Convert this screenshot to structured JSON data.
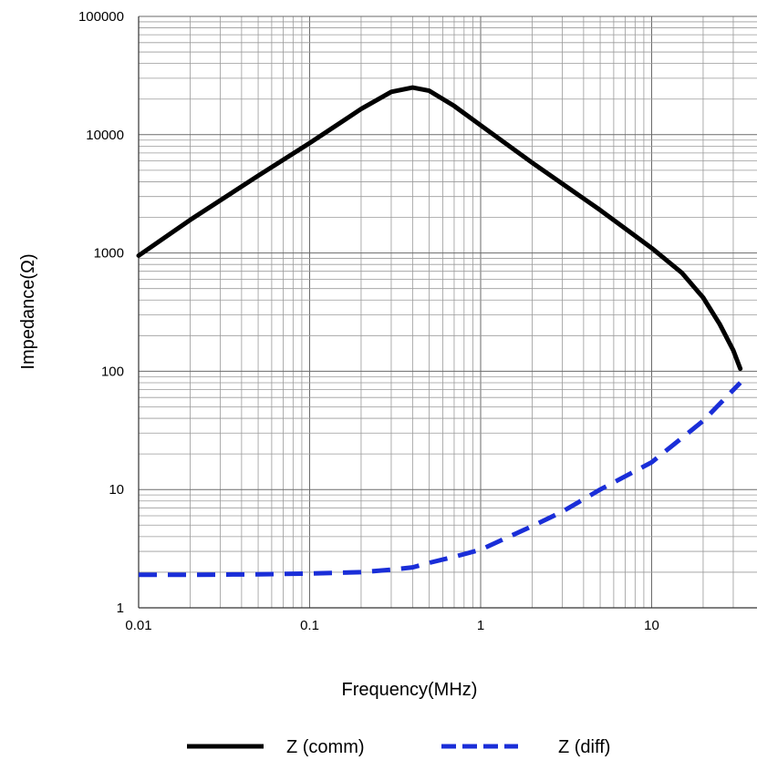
{
  "chart_data": {
    "type": "line",
    "title": "",
    "xlabel": "Frequency(MHz)",
    "ylabel": "Impedance(Ω)",
    "x_scale": "log",
    "y_scale": "log",
    "xlim": [
      0.01,
      33
    ],
    "ylim": [
      1,
      100000
    ],
    "grid": true,
    "legend_position": "bottom",
    "x_ticks": [
      "0.01",
      "0.1",
      "1",
      "10"
    ],
    "y_ticks": [
      "100000",
      "10000",
      "1000",
      "100",
      "10",
      "1"
    ],
    "series": [
      {
        "name": "Z (comm)",
        "color": "#000000",
        "style": "solid",
        "x": [
          0.01,
          0.02,
          0.05,
          0.1,
          0.2,
          0.3,
          0.4,
          0.5,
          0.7,
          1,
          2,
          5,
          10,
          15,
          20,
          25,
          30,
          33
        ],
        "y": [
          950,
          1900,
          4500,
          8500,
          16500,
          23000,
          25000,
          23500,
          17500,
          12000,
          5800,
          2300,
          1100,
          680,
          420,
          250,
          150,
          105
        ]
      },
      {
        "name": "Z (diff)",
        "color": "#1a2ed8",
        "style": "dashed",
        "x": [
          0.01,
          0.02,
          0.05,
          0.1,
          0.2,
          0.3,
          0.4,
          0.5,
          0.7,
          1,
          2,
          3,
          5,
          10,
          20,
          33
        ],
        "y": [
          1.9,
          1.9,
          1.92,
          1.95,
          2.0,
          2.1,
          2.2,
          2.4,
          2.7,
          3.1,
          4.9,
          6.5,
          10,
          17,
          38,
          80
        ]
      }
    ]
  }
}
